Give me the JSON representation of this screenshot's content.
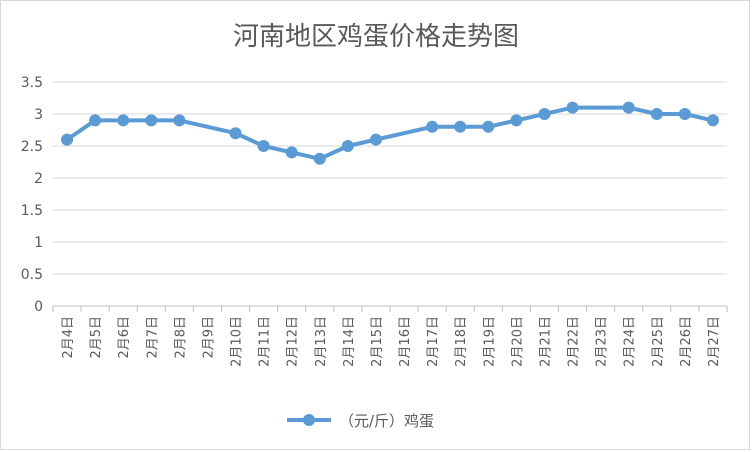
{
  "chart_data": {
    "type": "line",
    "title": "河南地区鸡蛋价格走势图",
    "categories": [
      "2月4日",
      "2月5日",
      "2月6日",
      "2月7日",
      "2月8日",
      "2月9日",
      "2月10日",
      "2月11日",
      "2月12日",
      "2月13日",
      "2月14日",
      "2月15日",
      "2月16日",
      "2月17日",
      "2月18日",
      "2月19日",
      "2月20日",
      "2月21日",
      "2月22日",
      "2月23日",
      "2月24日",
      "2月25日",
      "2月26日",
      "2月27日"
    ],
    "series": [
      {
        "name": "（元/斤）鸡蛋",
        "values": [
          2.6,
          2.9,
          2.9,
          2.9,
          2.9,
          null,
          2.7,
          2.5,
          2.4,
          2.3,
          2.5,
          2.6,
          null,
          2.8,
          2.8,
          2.8,
          2.9,
          3.0,
          3.1,
          null,
          3.1,
          3.0,
          3.0,
          2.9
        ]
      }
    ],
    "ylim": [
      0,
      3.5
    ],
    "yticks": [
      "0",
      "0.5",
      "1",
      "1.5",
      "2",
      "2.5",
      "3",
      "3.5"
    ],
    "grid": true,
    "legend_position": "bottom",
    "colors": {
      "series": "#5b9bd5",
      "grid": "#d9d9d9",
      "text": "#595959"
    }
  }
}
